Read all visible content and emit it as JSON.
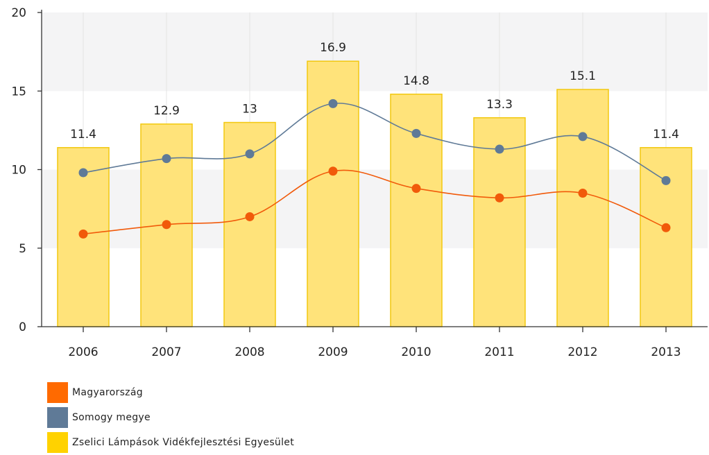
{
  "chart_data": {
    "type": "bar",
    "categories": [
      "2006",
      "2007",
      "2008",
      "2009",
      "2010",
      "2011",
      "2012",
      "2013"
    ],
    "ylim": [
      0,
      20
    ],
    "yticks": [
      "0",
      "5",
      "10",
      "15",
      "20"
    ],
    "ytick_values": [
      0,
      5,
      10,
      15,
      20
    ],
    "bands": [
      [
        5,
        10
      ],
      [
        15,
        20
      ]
    ],
    "series": [
      {
        "name": "Zselici Lámpások Vidékfejlesztési Egyesület",
        "type": "bar",
        "color": "#ffd700",
        "values": [
          11.4,
          12.9,
          13,
          16.9,
          14.8,
          13.3,
          15.1,
          11.4
        ],
        "labels": [
          "11.4",
          "12.9",
          "13",
          "16.9",
          "14.8",
          "13.3",
          "15.1",
          "11.4"
        ]
      },
      {
        "name": "Somogy megye",
        "type": "line",
        "color": "#5f7a97",
        "values": [
          9.8,
          10.7,
          11.0,
          14.2,
          12.3,
          11.3,
          12.1,
          9.3
        ]
      },
      {
        "name": "Magyarország",
        "type": "line",
        "color": "#f15a0a",
        "values": [
          5.9,
          6.5,
          7.0,
          9.9,
          8.8,
          8.2,
          8.5,
          6.3
        ]
      }
    ]
  },
  "legend": [
    {
      "label": "Magyarország",
      "color": "#ff6a00"
    },
    {
      "label": "Somogy megye",
      "color": "#5f7a97"
    },
    {
      "label": "Zselici Lámpások Vidékfejlesztési Egyesület",
      "color": "#ffd200"
    }
  ]
}
